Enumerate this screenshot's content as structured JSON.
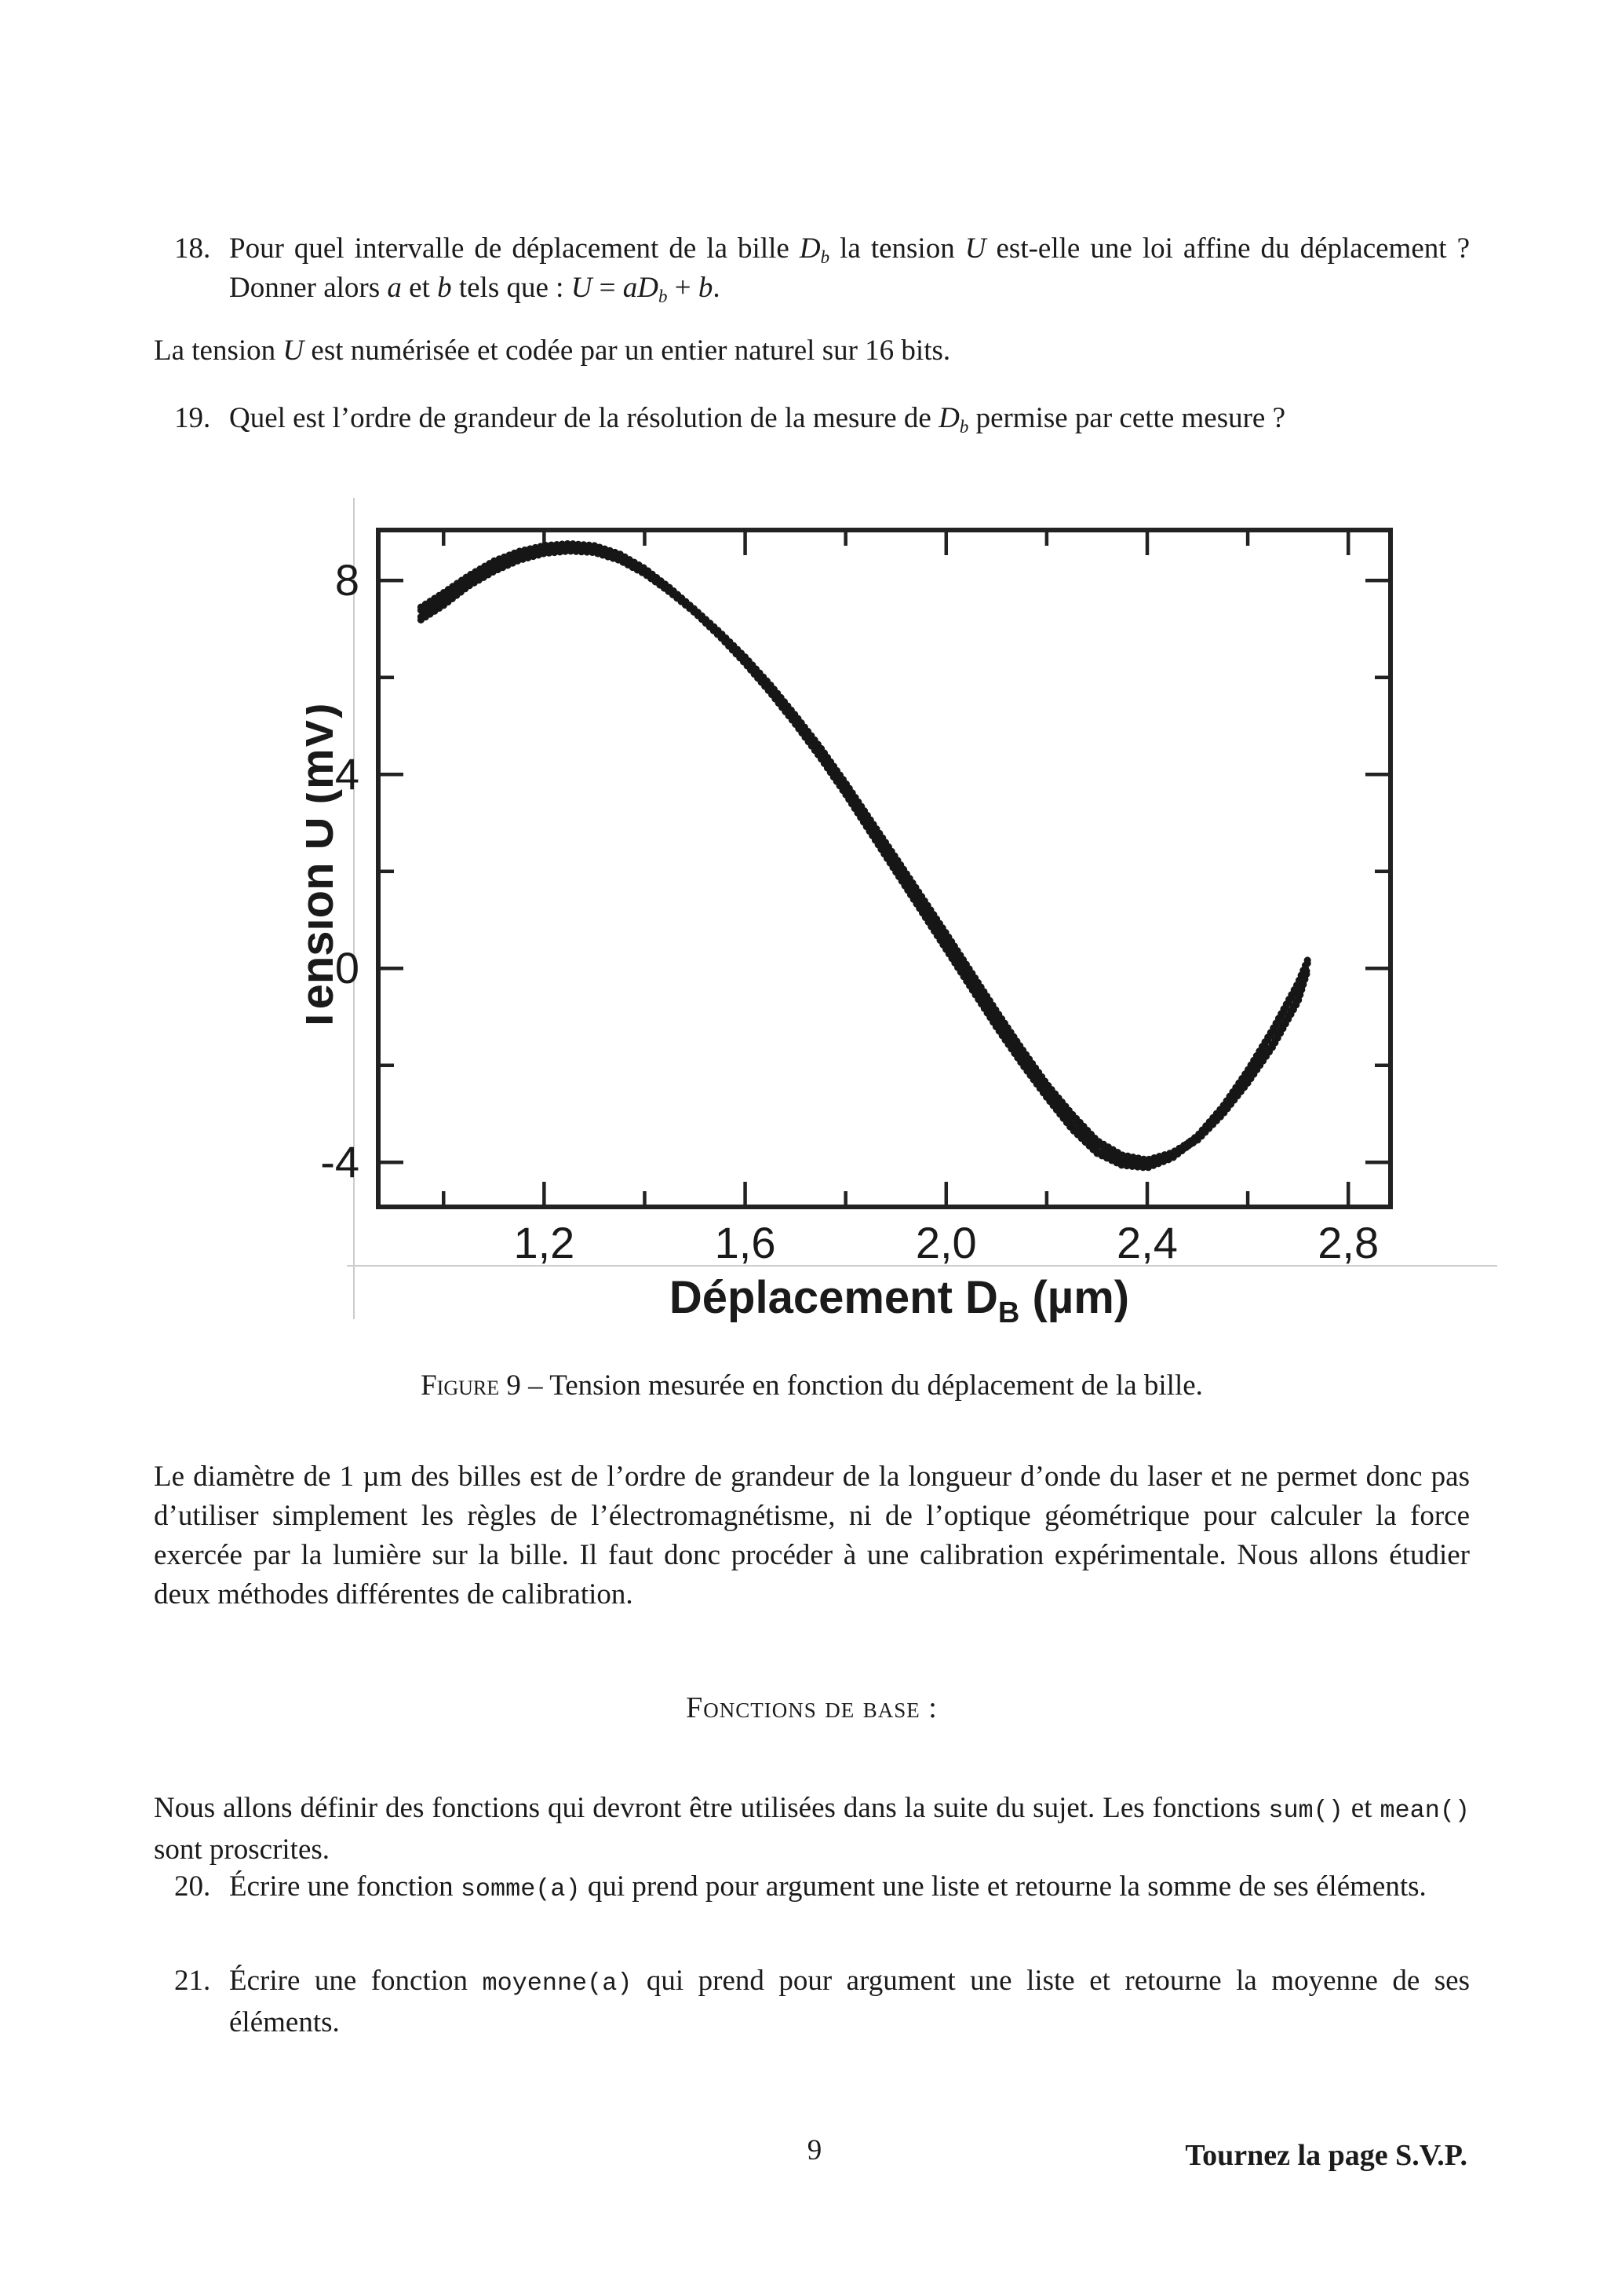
{
  "page": {
    "number": "9",
    "turn_note": "Tournez la page S.V.P."
  },
  "questions": {
    "q18": {
      "number": "18.",
      "segments": [
        {
          "t": "Pour quel intervalle de déplacement de la bille "
        },
        {
          "t": "D",
          "s": "i"
        },
        {
          "t": "b",
          "s": "sub i"
        },
        {
          "t": " la tension "
        },
        {
          "t": "U",
          "s": "i"
        },
        {
          "t": " est-elle une loi affine du déplacement ? Donner alors "
        },
        {
          "t": "a",
          "s": "i"
        },
        {
          "t": " et "
        },
        {
          "t": "b",
          "s": "i"
        },
        {
          "t": " tels que : "
        },
        {
          "t": "U",
          "s": "i"
        },
        {
          "t": " = "
        },
        {
          "t": "aD",
          "s": "i"
        },
        {
          "t": "b",
          "s": "sub i"
        },
        {
          "t": " + "
        },
        {
          "t": "b",
          "s": "i"
        },
        {
          "t": "."
        }
      ]
    },
    "q19": {
      "number": "19.",
      "segments": [
        {
          "t": "Quel est l’ordre de grandeur de la résolution de la mesure de "
        },
        {
          "t": "D",
          "s": "i"
        },
        {
          "t": "b",
          "s": "sub i"
        },
        {
          "t": " permise par cette mesure ?"
        }
      ]
    },
    "q20": {
      "number": "20.",
      "segments": [
        {
          "t": "Écrire une fonction "
        },
        {
          "t": "somme(a)",
          "s": "mono"
        },
        {
          "t": " qui prend pour argument une liste et retourne la somme de ses éléments."
        }
      ]
    },
    "q21": {
      "number": "21.",
      "segments": [
        {
          "t": "Écrire une fonction "
        },
        {
          "t": "moyenne(a)",
          "s": "mono"
        },
        {
          "t": " qui prend pour argument une liste et retourne la moyenne de ses éléments."
        }
      ]
    }
  },
  "paragraphs": {
    "tension_16bits": {
      "segments": [
        {
          "t": "La tension "
        },
        {
          "t": "U",
          "s": "i"
        },
        {
          "t": " est numérisée et codée par un entier naturel sur 16 bits."
        }
      ]
    },
    "diametre": {
      "text": "Le diamètre de 1 µm des billes est de l’ordre de grandeur de la longueur d’onde du laser et ne permet donc pas d’utiliser simplement les règles de l’électromagnétisme, ni de l’optique géométrique pour calculer la force exercée par la lumière sur la bille. Il faut donc procéder à une calibration expérimentale. Nous allons étudier deux méthodes différentes de calibration."
    },
    "fonctions_intro": {
      "segments": [
        {
          "t": "Nous allons définir des fonctions qui devront être utilisées dans la suite du sujet. Les fonctions "
        },
        {
          "t": "sum()",
          "s": "mono"
        },
        {
          "t": " et "
        },
        {
          "t": "mean()",
          "s": "mono"
        },
        {
          "t": " sont proscrites."
        }
      ]
    }
  },
  "section_heading": {
    "text": "Fonctions de base :"
  },
  "figure": {
    "caption_segments": [
      {
        "t": "Figure 9",
        "s": "sc"
      },
      {
        "t": " – Tension mesurée en fonction du déplacement de la bille."
      }
    ],
    "chart_data": {
      "type": "scatter",
      "title": "",
      "xlabel": "Déplacement D_B (µm)",
      "xlabel_segments": [
        {
          "t": "Déplacement D"
        },
        {
          "t": "B",
          "s": "sub"
        },
        {
          "t": " (µm)"
        }
      ],
      "ylabel": "Tension U (mV)",
      "xlim": [
        0.87,
        2.884
      ],
      "ylim": [
        -4.92,
        9.04
      ],
      "x_ticks": {
        "major": [
          1.2,
          1.6,
          2.0,
          2.4,
          2.8
        ],
        "labels": [
          "1,2",
          "1,6",
          "2,0",
          "2,4",
          "2,8"
        ],
        "minor": [
          1.0,
          1.4,
          1.8,
          2.2,
          2.6
        ]
      },
      "y_ticks": {
        "major": [
          8,
          4,
          0,
          -4
        ],
        "labels": [
          "8",
          "4",
          "0",
          "-4"
        ],
        "minor": [
          6,
          2,
          -2
        ]
      },
      "grid": false,
      "legend": false,
      "marker": "dot",
      "color": "#161616",
      "series": [
        {
          "name": "trace-1",
          "points": [
            [
              0.955,
              7.45
            ],
            [
              1.0,
              7.75
            ],
            [
              1.05,
              8.1
            ],
            [
              1.1,
              8.4
            ],
            [
              1.15,
              8.6
            ],
            [
              1.2,
              8.72
            ],
            [
              1.25,
              8.76
            ],
            [
              1.3,
              8.72
            ],
            [
              1.35,
              8.55
            ],
            [
              1.4,
              8.25
            ],
            [
              1.45,
              7.85
            ],
            [
              1.5,
              7.4
            ],
            [
              1.55,
              6.9
            ],
            [
              1.6,
              6.35
            ],
            [
              1.65,
              5.75
            ],
            [
              1.7,
              5.1
            ],
            [
              1.75,
              4.4
            ],
            [
              1.8,
              3.65
            ],
            [
              1.85,
              2.85
            ],
            [
              1.9,
              2.05
            ],
            [
              1.95,
              1.25
            ],
            [
              2.0,
              0.45
            ],
            [
              2.05,
              -0.35
            ],
            [
              2.1,
              -1.15
            ],
            [
              2.15,
              -1.9
            ],
            [
              2.2,
              -2.6
            ],
            [
              2.25,
              -3.25
            ],
            [
              2.3,
              -3.75
            ],
            [
              2.35,
              -4.0
            ],
            [
              2.4,
              -4.05
            ],
            [
              2.45,
              -3.85
            ],
            [
              2.5,
              -3.45
            ],
            [
              2.55,
              -2.85
            ],
            [
              2.6,
              -2.1
            ],
            [
              2.65,
              -1.25
            ],
            [
              2.7,
              -0.3
            ],
            [
              2.72,
              0.2
            ]
          ]
        },
        {
          "name": "trace-2",
          "points": [
            [
              0.955,
              7.25
            ],
            [
              1.0,
              7.55
            ],
            [
              1.05,
              7.95
            ],
            [
              1.1,
              8.25
            ],
            [
              1.15,
              8.48
            ],
            [
              1.2,
              8.62
            ],
            [
              1.25,
              8.67
            ],
            [
              1.3,
              8.64
            ],
            [
              1.35,
              8.48
            ],
            [
              1.4,
              8.2
            ],
            [
              1.45,
              7.82
            ],
            [
              1.5,
              7.4
            ],
            [
              1.55,
              6.93
            ],
            [
              1.6,
              6.42
            ],
            [
              1.65,
              5.85
            ],
            [
              1.7,
              5.22
            ],
            [
              1.75,
              4.55
            ],
            [
              1.8,
              3.82
            ],
            [
              1.85,
              3.05
            ],
            [
              1.9,
              2.28
            ],
            [
              1.95,
              1.5
            ],
            [
              2.0,
              0.72
            ],
            [
              2.05,
              -0.08
            ],
            [
              2.1,
              -0.88
            ],
            [
              2.15,
              -1.65
            ],
            [
              2.2,
              -2.38
            ],
            [
              2.25,
              -3.0
            ],
            [
              2.3,
              -3.55
            ],
            [
              2.35,
              -3.85
            ],
            [
              2.4,
              -3.95
            ],
            [
              2.45,
              -3.8
            ],
            [
              2.5,
              -3.48
            ],
            [
              2.55,
              -2.95
            ],
            [
              2.6,
              -2.3
            ],
            [
              2.65,
              -1.55
            ],
            [
              2.7,
              -0.62
            ],
            [
              2.72,
              0.05
            ]
          ]
        }
      ]
    }
  }
}
